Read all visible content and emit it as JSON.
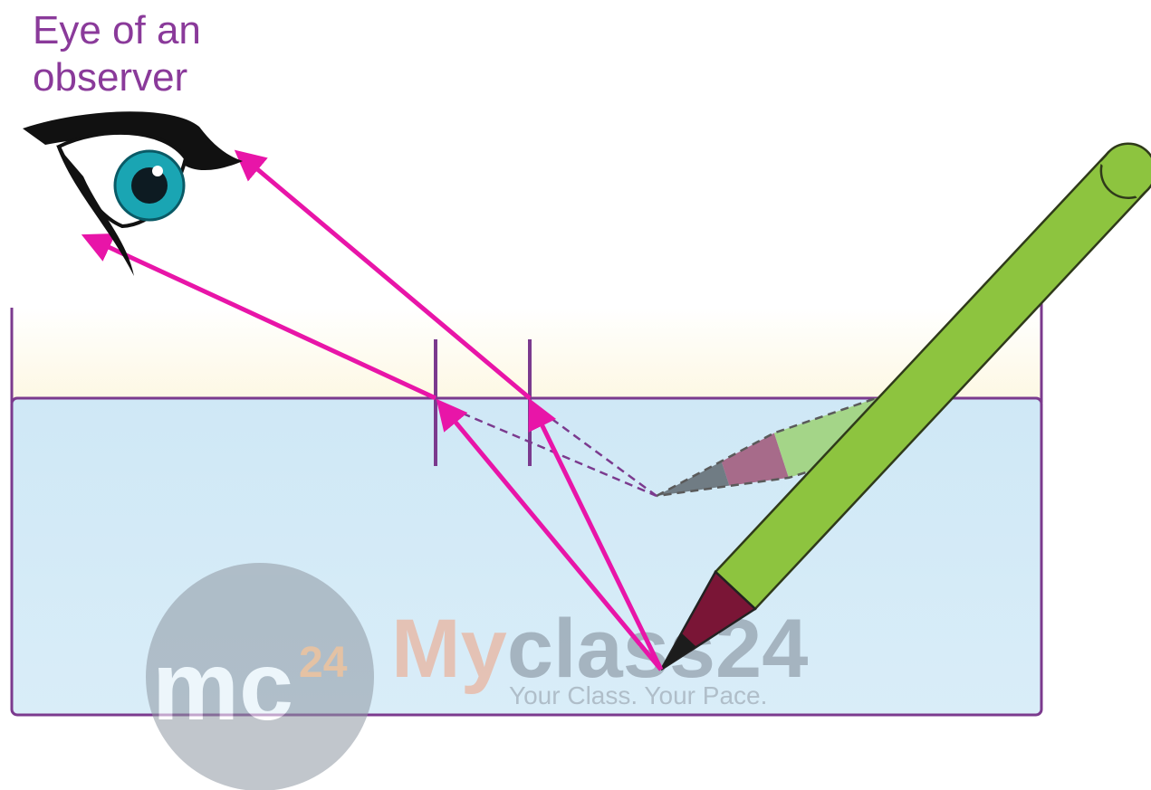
{
  "label": {
    "lines": [
      "Eye of an",
      "observer"
    ]
  },
  "watermark": {
    "logo": "mc",
    "logo_superscript": "24",
    "brand_my": "My",
    "brand_class": "class24",
    "tagline": "Your Class. Your Pace."
  }
}
